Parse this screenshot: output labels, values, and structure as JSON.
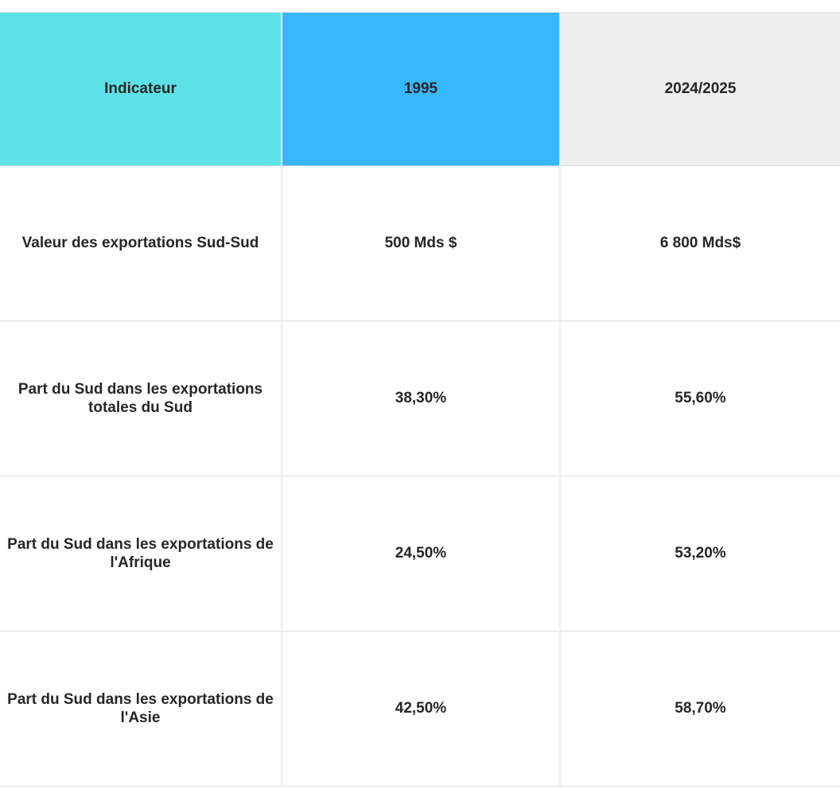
{
  "colors": {
    "header_indicator_bg": "#5ce1e6",
    "header_1995_bg": "#38b6ff",
    "header_2024_bg": "#eeeeee",
    "text": "#262626",
    "border_horizontal": "#dcdcdc",
    "border_vertical": "#ececec",
    "page_bg": "#ffffff"
  },
  "table": {
    "headers": [
      {
        "label": "Indicateur"
      },
      {
        "label": "1995"
      },
      {
        "label": "2024/2025"
      }
    ],
    "rows": [
      {
        "indicator": "Valeur des exportations Sud-Sud",
        "v1995": "500 Mds $",
        "v2024": "6 800 Mds$"
      },
      {
        "indicator": "Part du Sud dans les exportations totales du Sud",
        "v1995": "38,30%",
        "v2024": "55,60%"
      },
      {
        "indicator": "Part du Sud dans les exportations de l'Afrique",
        "v1995": "24,50%",
        "v2024": "53,20%"
      },
      {
        "indicator": "Part du Sud dans les exportations de l'Asie",
        "v1995": "42,50%",
        "v2024": "58,70%"
      }
    ]
  },
  "chart_data": {
    "type": "table",
    "title": "",
    "columns": [
      "Indicateur",
      "1995",
      "2024/2025"
    ],
    "rows": [
      [
        "Valeur des exportations Sud-Sud",
        "500 Mds $",
        "6 800 Mds$"
      ],
      [
        "Part du Sud dans les exportations totales du Sud",
        "38,30%",
        "55,60%"
      ],
      [
        "Part du Sud dans les exportations de l'Afrique",
        "24,50%",
        "53,20%"
      ],
      [
        "Part du Sud dans les exportations de l'Asie",
        "42,50%",
        "58,70%"
      ]
    ],
    "series": [
      {
        "name": "1995",
        "values": [
          500,
          38.3,
          24.5,
          42.5
        ]
      },
      {
        "name": "2024/2025",
        "values": [
          6800,
          55.6,
          53.2,
          58.7
        ]
      }
    ],
    "units": [
      "Mds $",
      "%",
      "%",
      "%"
    ],
    "layout": {
      "header_colors": [
        "#5ce1e6",
        "#38b6ff",
        "#eeeeee"
      ],
      "grid": "on",
      "legend": "none"
    }
  }
}
